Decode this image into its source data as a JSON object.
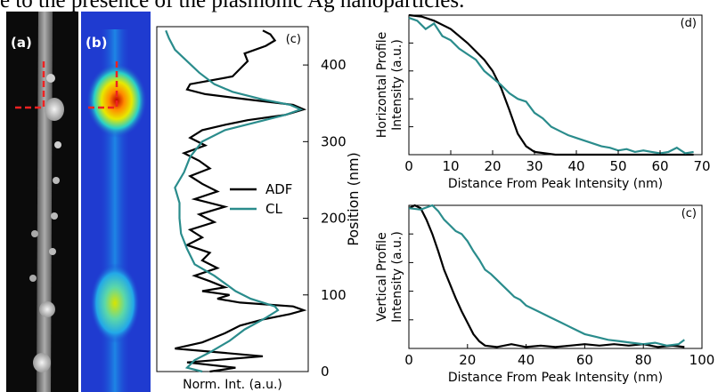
{
  "caption_text": "e to the presence of the plasmonic Ag nanoparticles.",
  "panel_a_label": "(a)",
  "panel_b_label": "(b)",
  "colors": {
    "adf": "#000000",
    "cl": "#2a8c8c",
    "marker": "#ee2222",
    "cl_map_bg": "#1f3bd0",
    "adf_bg": "#0b0b0b"
  },
  "chart_data": [
    {
      "type": "line",
      "panel": "(c)",
      "orientation": "vertical",
      "xlabel": "Norm. Int. (a.u.)",
      "ylabel": "Position (nm)",
      "ylim": [
        0,
        450
      ],
      "yticks": [
        0,
        100,
        200,
        300,
        400
      ],
      "legend": "right",
      "series": [
        {
          "name": "ADF",
          "points": [
            [
              0,
              0.35
            ],
            [
              5,
              0.52
            ],
            [
              12,
              0.2
            ],
            [
              20,
              0.7
            ],
            [
              30,
              0.12
            ],
            [
              38,
              0.3
            ],
            [
              50,
              0.45
            ],
            [
              60,
              0.55
            ],
            [
              68,
              0.7
            ],
            [
              75,
              0.88
            ],
            [
              80,
              0.97
            ],
            [
              85,
              0.9
            ],
            [
              90,
              0.55
            ],
            [
              95,
              0.4
            ],
            [
              100,
              0.48
            ],
            [
              105,
              0.3
            ],
            [
              110,
              0.45
            ],
            [
              118,
              0.35
            ],
            [
              125,
              0.25
            ],
            [
              135,
              0.4
            ],
            [
              145,
              0.3
            ],
            [
              155,
              0.35
            ],
            [
              165,
              0.2
            ],
            [
              175,
              0.3
            ],
            [
              185,
              0.22
            ],
            [
              195,
              0.38
            ],
            [
              205,
              0.28
            ],
            [
              215,
              0.45
            ],
            [
              225,
              0.25
            ],
            [
              235,
              0.4
            ],
            [
              245,
              0.3
            ],
            [
              255,
              0.22
            ],
            [
              265,
              0.35
            ],
            [
              275,
              0.28
            ],
            [
              285,
              0.18
            ],
            [
              295,
              0.32
            ],
            [
              305,
              0.22
            ],
            [
              315,
              0.3
            ],
            [
              322,
              0.45
            ],
            [
              328,
              0.6
            ],
            [
              335,
              0.85
            ],
            [
              342,
              0.97
            ],
            [
              348,
              0.9
            ],
            [
              355,
              0.6
            ],
            [
              362,
              0.32
            ],
            [
              368,
              0.2
            ],
            [
              375,
              0.22
            ],
            [
              385,
              0.5
            ],
            [
              395,
              0.55
            ],
            [
              405,
              0.6
            ],
            [
              415,
              0.58
            ],
            [
              425,
              0.72
            ],
            [
              432,
              0.78
            ],
            [
              440,
              0.75
            ],
            [
              445,
              0.7
            ]
          ]
        },
        {
          "name": "CL",
          "points": [
            [
              0,
              0.3
            ],
            [
              5,
              0.2
            ],
            [
              15,
              0.25
            ],
            [
              25,
              0.35
            ],
            [
              40,
              0.48
            ],
            [
              55,
              0.58
            ],
            [
              70,
              0.72
            ],
            [
              80,
              0.8
            ],
            [
              85,
              0.78
            ],
            [
              95,
              0.62
            ],
            [
              105,
              0.52
            ],
            [
              115,
              0.45
            ],
            [
              125,
              0.38
            ],
            [
              140,
              0.25
            ],
            [
              160,
              0.2
            ],
            [
              180,
              0.16
            ],
            [
              200,
              0.15
            ],
            [
              220,
              0.15
            ],
            [
              240,
              0.12
            ],
            [
              260,
              0.18
            ],
            [
              280,
              0.22
            ],
            [
              300,
              0.3
            ],
            [
              315,
              0.45
            ],
            [
              325,
              0.65
            ],
            [
              335,
              0.85
            ],
            [
              342,
              0.95
            ],
            [
              348,
              0.88
            ],
            [
              355,
              0.7
            ],
            [
              365,
              0.5
            ],
            [
              375,
              0.38
            ],
            [
              390,
              0.28
            ],
            [
              405,
              0.2
            ],
            [
              420,
              0.12
            ],
            [
              435,
              0.08
            ],
            [
              445,
              0.06
            ]
          ]
        }
      ]
    },
    {
      "type": "line",
      "panel": "(d)",
      "ylabel": "Horizontal Profile Intensity (a.u.)",
      "xlabel": "Distance From Peak Intensity (nm)",
      "xlim": [
        0,
        70
      ],
      "xticks": [
        0,
        10,
        20,
        30,
        40,
        50,
        60,
        70
      ],
      "ylim": [
        0,
        1
      ],
      "series": [
        {
          "name": "ADF",
          "points": [
            [
              0,
              1.0
            ],
            [
              3,
              0.99
            ],
            [
              6,
              0.96
            ],
            [
              10,
              0.9
            ],
            [
              14,
              0.8
            ],
            [
              18,
              0.68
            ],
            [
              20,
              0.6
            ],
            [
              22,
              0.48
            ],
            [
              24,
              0.32
            ],
            [
              26,
              0.15
            ],
            [
              28,
              0.06
            ],
            [
              30,
              0.02
            ],
            [
              35,
              0.0
            ],
            [
              40,
              0.0
            ],
            [
              50,
              0.0
            ],
            [
              60,
              0.0
            ],
            [
              68,
              0.0
            ]
          ]
        },
        {
          "name": "CL",
          "points": [
            [
              0,
              0.98
            ],
            [
              2,
              0.96
            ],
            [
              4,
              0.9
            ],
            [
              6,
              0.94
            ],
            [
              8,
              0.85
            ],
            [
              10,
              0.82
            ],
            [
              12,
              0.76
            ],
            [
              14,
              0.72
            ],
            [
              16,
              0.68
            ],
            [
              18,
              0.6
            ],
            [
              20,
              0.55
            ],
            [
              22,
              0.5
            ],
            [
              24,
              0.44
            ],
            [
              26,
              0.4
            ],
            [
              28,
              0.38
            ],
            [
              30,
              0.3
            ],
            [
              32,
              0.26
            ],
            [
              34,
              0.2
            ],
            [
              36,
              0.17
            ],
            [
              38,
              0.14
            ],
            [
              40,
              0.12
            ],
            [
              42,
              0.1
            ],
            [
              44,
              0.08
            ],
            [
              46,
              0.06
            ],
            [
              48,
              0.05
            ],
            [
              50,
              0.03
            ],
            [
              52,
              0.04
            ],
            [
              54,
              0.02
            ],
            [
              56,
              0.03
            ],
            [
              58,
              0.02
            ],
            [
              60,
              0.01
            ],
            [
              62,
              0.02
            ],
            [
              64,
              0.05
            ],
            [
              66,
              0.01
            ],
            [
              68,
              0.02
            ]
          ]
        }
      ]
    },
    {
      "type": "line",
      "panel": "(c)",
      "ylabel": "Vertical Profile Intensity (a.u.)",
      "xlabel": "Distance From Peak Intensity (nm)",
      "xlim": [
        0,
        100
      ],
      "xticks": [
        0,
        20,
        40,
        60,
        80,
        100
      ],
      "ylim": [
        0,
        1
      ],
      "series": [
        {
          "name": "ADF",
          "points": [
            [
              0,
              0.98
            ],
            [
              2,
              1.0
            ],
            [
              4,
              0.98
            ],
            [
              6,
              0.9
            ],
            [
              8,
              0.8
            ],
            [
              10,
              0.68
            ],
            [
              12,
              0.55
            ],
            [
              14,
              0.45
            ],
            [
              16,
              0.35
            ],
            [
              18,
              0.26
            ],
            [
              20,
              0.18
            ],
            [
              22,
              0.1
            ],
            [
              24,
              0.05
            ],
            [
              26,
              0.02
            ],
            [
              30,
              0.01
            ],
            [
              35,
              0.03
            ],
            [
              40,
              0.01
            ],
            [
              45,
              0.02
            ],
            [
              50,
              0.01
            ],
            [
              55,
              0.02
            ],
            [
              60,
              0.03
            ],
            [
              65,
              0.02
            ],
            [
              70,
              0.03
            ],
            [
              75,
              0.02
            ],
            [
              80,
              0.03
            ],
            [
              85,
              0.01
            ],
            [
              90,
              0.02
            ],
            [
              94,
              0.01
            ]
          ]
        },
        {
          "name": "CL",
          "points": [
            [
              0,
              0.98
            ],
            [
              4,
              0.97
            ],
            [
              8,
              1.0
            ],
            [
              10,
              0.96
            ],
            [
              12,
              0.9
            ],
            [
              14,
              0.86
            ],
            [
              16,
              0.82
            ],
            [
              18,
              0.8
            ],
            [
              20,
              0.75
            ],
            [
              22,
              0.68
            ],
            [
              24,
              0.62
            ],
            [
              26,
              0.55
            ],
            [
              28,
              0.52
            ],
            [
              30,
              0.48
            ],
            [
              32,
              0.44
            ],
            [
              34,
              0.4
            ],
            [
              36,
              0.36
            ],
            [
              38,
              0.34
            ],
            [
              40,
              0.3
            ],
            [
              44,
              0.26
            ],
            [
              48,
              0.22
            ],
            [
              52,
              0.18
            ],
            [
              56,
              0.14
            ],
            [
              60,
              0.1
            ],
            [
              64,
              0.08
            ],
            [
              68,
              0.06
            ],
            [
              72,
              0.05
            ],
            [
              76,
              0.04
            ],
            [
              80,
              0.03
            ],
            [
              84,
              0.04
            ],
            [
              88,
              0.02
            ],
            [
              92,
              0.03
            ],
            [
              94,
              0.06
            ]
          ]
        }
      ]
    }
  ]
}
